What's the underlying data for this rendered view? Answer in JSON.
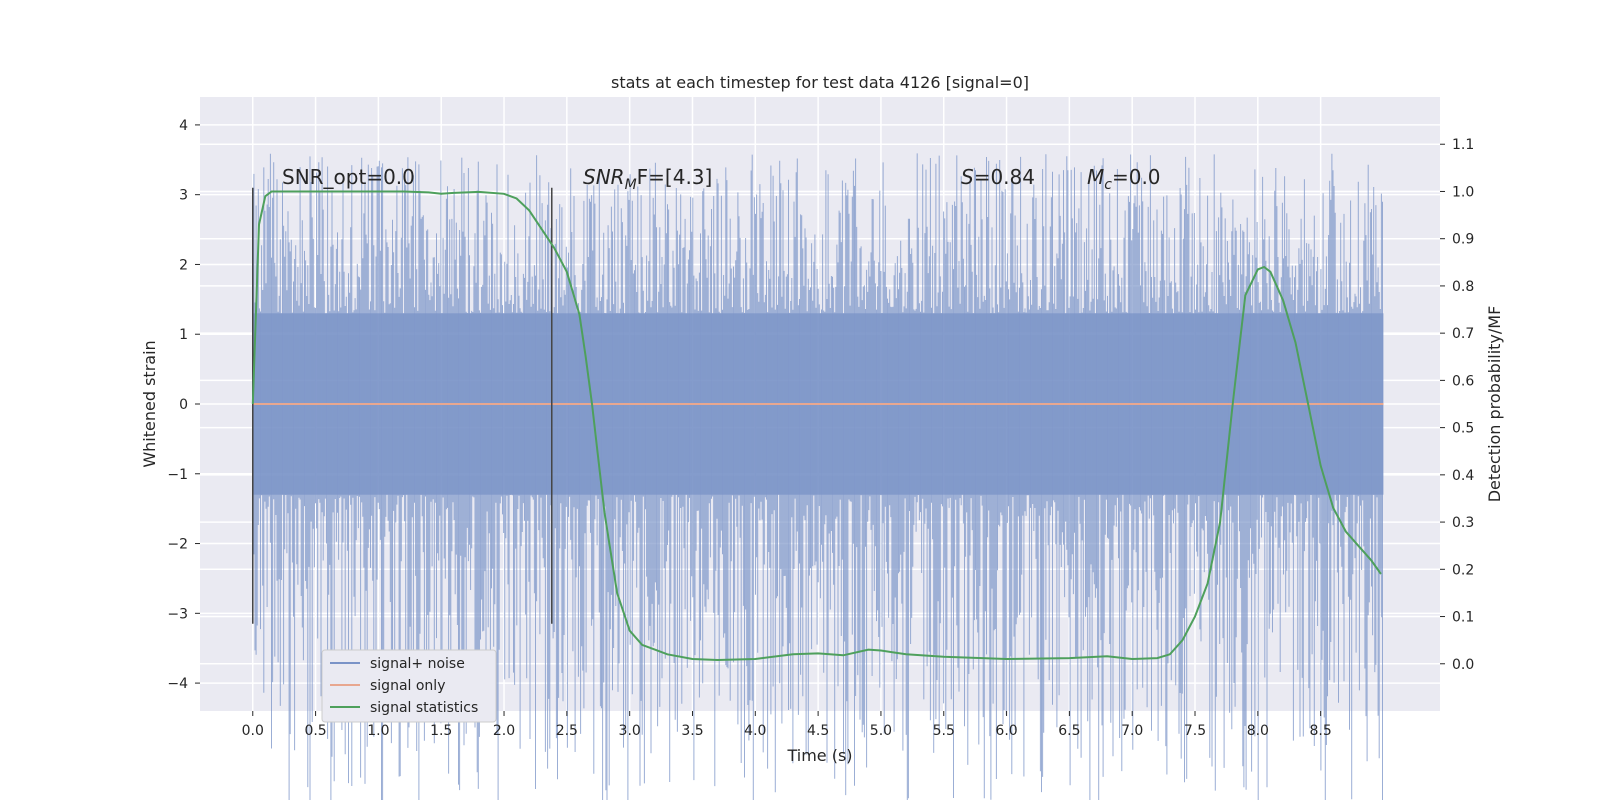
{
  "chart_data": {
    "type": "line",
    "title": "stats at each timestep for test data 4126 [signal=0]",
    "xlabel": "Time (s)",
    "ylabel": "Whitened strain",
    "y2label": "Detection probability/MF",
    "xlim": [
      -0.42,
      9.45
    ],
    "ylim": [
      -4.4,
      4.4
    ],
    "y2lim": [
      -0.1,
      1.2
    ],
    "grid": true,
    "x_ticks": [
      "0.0",
      "0.5",
      "1.0",
      "1.5",
      "2.0",
      "2.5",
      "3.0",
      "3.5",
      "4.0",
      "4.5",
      "5.0",
      "5.5",
      "6.0",
      "6.5",
      "7.0",
      "7.5",
      "8.0",
      "8.5"
    ],
    "y_ticks": [
      "4",
      "3",
      "2",
      "1",
      "0",
      "−1",
      "−2",
      "−3",
      "−4"
    ],
    "y2_ticks": [
      "1.1",
      "1.0",
      "0.9",
      "0.8",
      "0.7",
      "0.6",
      "0.5",
      "0.4",
      "0.3",
      "0.2",
      "0.1",
      "0.0"
    ],
    "annotations": [
      {
        "text": "SNR_opt=0.0"
      },
      {
        "italic": "SNR",
        "sub": "M",
        "rest": "F=[4.3]"
      },
      {
        "italic": "S",
        "rest": "=0.84"
      },
      {
        "italic": "M",
        "sub": "c",
        "rest": "=0.0"
      }
    ],
    "vlines_x": [
      0.0,
      2.38
    ],
    "legend": {
      "placement": "lower-left",
      "entries": [
        "signal+ noise",
        "signal only",
        "signal statistics"
      ]
    },
    "series": [
      {
        "name": "signal+ noise",
        "color": "#7a93c7",
        "axis": "left",
        "kind": "noise",
        "x_range": [
          0.0,
          9.0
        ],
        "core_envelope": [
          -1.3,
          1.3
        ],
        "peak_envelope": [
          -4.0,
          4.0
        ]
      },
      {
        "name": "signal only",
        "color": "#e8a78f",
        "axis": "left",
        "kind": "flat",
        "x": [
          0.0,
          9.0
        ],
        "y": [
          0.0,
          0.0
        ]
      },
      {
        "name": "signal statistics",
        "color": "#4ea05c",
        "axis": "right",
        "kind": "line",
        "x": [
          0.0,
          0.05,
          0.1,
          0.15,
          0.2,
          0.4,
          0.6,
          0.8,
          1.0,
          1.2,
          1.4,
          1.5,
          1.6,
          1.8,
          2.0,
          2.1,
          2.2,
          2.3,
          2.4,
          2.5,
          2.6,
          2.65,
          2.7,
          2.8,
          2.9,
          3.0,
          3.1,
          3.2,
          3.3,
          3.5,
          3.7,
          4.0,
          4.3,
          4.5,
          4.7,
          4.9,
          5.0,
          5.2,
          5.5,
          6.0,
          6.5,
          6.8,
          7.0,
          7.2,
          7.3,
          7.4,
          7.5,
          7.6,
          7.7,
          7.8,
          7.9,
          8.0,
          8.05,
          8.1,
          8.2,
          8.3,
          8.4,
          8.5,
          8.6,
          8.7,
          8.8,
          8.9,
          8.98
        ],
        "y": [
          0.55,
          0.93,
          0.99,
          1.0,
          1.0,
          1.0,
          1.0,
          1.0,
          1.0,
          1.0,
          0.998,
          0.995,
          0.997,
          0.999,
          0.995,
          0.985,
          0.96,
          0.92,
          0.88,
          0.83,
          0.74,
          0.65,
          0.55,
          0.32,
          0.15,
          0.07,
          0.04,
          0.03,
          0.02,
          0.01,
          0.008,
          0.01,
          0.02,
          0.022,
          0.018,
          0.03,
          0.028,
          0.02,
          0.015,
          0.01,
          0.012,
          0.016,
          0.01,
          0.012,
          0.02,
          0.05,
          0.1,
          0.17,
          0.3,
          0.55,
          0.78,
          0.835,
          0.84,
          0.83,
          0.77,
          0.68,
          0.55,
          0.42,
          0.33,
          0.28,
          0.25,
          0.22,
          0.19
        ]
      }
    ]
  }
}
